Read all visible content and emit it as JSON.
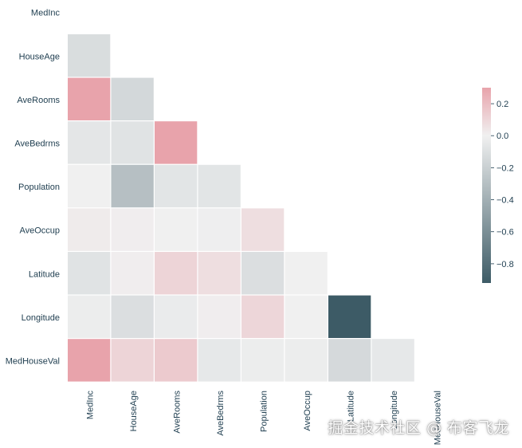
{
  "chart_data": {
    "type": "heatmap",
    "title": "",
    "variables": [
      "MedInc",
      "HouseAge",
      "AveRooms",
      "AveBedrms",
      "Population",
      "AveOccup",
      "Latitude",
      "Longitude",
      "MedHouseVal"
    ],
    "mask": "upper-triangle-and-diagonal",
    "cells": [
      {
        "row": "HouseAge",
        "col": "MedInc",
        "value": -0.12
      },
      {
        "row": "AveRooms",
        "col": "MedInc",
        "value": 0.33
      },
      {
        "row": "AveRooms",
        "col": "HouseAge",
        "value": -0.15
      },
      {
        "row": "AveBedrms",
        "col": "MedInc",
        "value": -0.06
      },
      {
        "row": "AveBedrms",
        "col": "HouseAge",
        "value": -0.08
      },
      {
        "row": "AveBedrms",
        "col": "AveRooms",
        "value": 0.33
      },
      {
        "row": "Population",
        "col": "MedInc",
        "value": 0.0
      },
      {
        "row": "Population",
        "col": "HouseAge",
        "value": -0.3
      },
      {
        "row": "Population",
        "col": "AveRooms",
        "value": -0.07
      },
      {
        "row": "Population",
        "col": "AveBedrms",
        "value": -0.07
      },
      {
        "row": "AveOccup",
        "col": "MedInc",
        "value": 0.02
      },
      {
        "row": "AveOccup",
        "col": "HouseAge",
        "value": 0.01
      },
      {
        "row": "AveOccup",
        "col": "AveRooms",
        "value": 0.0
      },
      {
        "row": "AveOccup",
        "col": "AveBedrms",
        "value": -0.01
      },
      {
        "row": "AveOccup",
        "col": "Population",
        "value": 0.07
      },
      {
        "row": "Latitude",
        "col": "MedInc",
        "value": -0.08
      },
      {
        "row": "Latitude",
        "col": "HouseAge",
        "value": 0.01
      },
      {
        "row": "Latitude",
        "col": "AveRooms",
        "value": 0.11
      },
      {
        "row": "Latitude",
        "col": "AveBedrms",
        "value": 0.07
      },
      {
        "row": "Latitude",
        "col": "Population",
        "value": -0.11
      },
      {
        "row": "Latitude",
        "col": "AveOccup",
        "value": 0.0
      },
      {
        "row": "Longitude",
        "col": "MedInc",
        "value": -0.02
      },
      {
        "row": "Longitude",
        "col": "HouseAge",
        "value": -0.11
      },
      {
        "row": "Longitude",
        "col": "AveRooms",
        "value": -0.03
      },
      {
        "row": "Longitude",
        "col": "AveBedrms",
        "value": 0.01
      },
      {
        "row": "Longitude",
        "col": "Population",
        "value": 0.1
      },
      {
        "row": "Longitude",
        "col": "AveOccup",
        "value": 0.0
      },
      {
        "row": "Longitude",
        "col": "Latitude",
        "value": -0.92
      },
      {
        "row": "MedHouseVal",
        "col": "MedInc",
        "value": 0.33
      },
      {
        "row": "MedHouseVal",
        "col": "HouseAge",
        "value": 0.11
      },
      {
        "row": "MedHouseVal",
        "col": "AveRooms",
        "value": 0.15
      },
      {
        "row": "MedHouseVal",
        "col": "AveBedrms",
        "value": -0.05
      },
      {
        "row": "MedHouseVal",
        "col": "Population",
        "value": -0.02
      },
      {
        "row": "MedHouseVal",
        "col": "AveOccup",
        "value": -0.02
      },
      {
        "row": "MedHouseVal",
        "col": "Latitude",
        "value": -0.14
      },
      {
        "row": "MedHouseVal",
        "col": "Longitude",
        "value": -0.05
      }
    ],
    "colorbar": {
      "range": [
        -0.92,
        0.3
      ],
      "ticks": [
        0.2,
        0.0,
        -0.2,
        -0.4,
        -0.6,
        -0.8
      ],
      "tick_labels": [
        "0.2",
        "0.0",
        "−0.2",
        "−0.4",
        "−0.6",
        "−0.8"
      ],
      "colors": {
        "negative": "#3d5b66",
        "center": "#f0f0f0",
        "positive": "#e8a3ab"
      }
    }
  },
  "watermark": "掘金技术社区 @ 布客飞龙"
}
